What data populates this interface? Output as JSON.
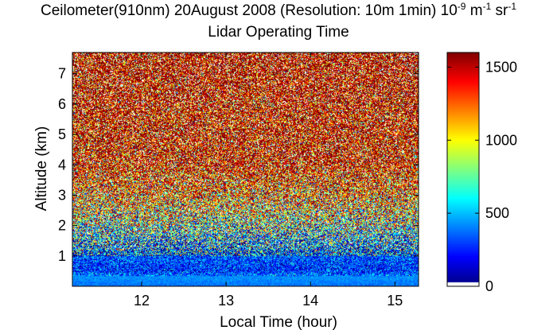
{
  "chart_data": [
    {
      "type": "heatmap",
      "title_main": "Ceilometer(910nm) 20August 2008 (Resolution: 10m 1min) 10",
      "title_exp1": "-9",
      "title_unit_m": " m",
      "title_exp2": "-1",
      "title_unit_sr": " sr",
      "title_exp3": "-1",
      "subtitle": "Lidar Operating Time",
      "xlabel": "Local Time (hour)",
      "ylabel": "Altitude (km)",
      "x_ticks": [
        "12",
        "13",
        "14",
        "15"
      ],
      "y_ticks": [
        "1",
        "2",
        "3",
        "4",
        "5",
        "6",
        "7"
      ],
      "x_tick_values": [
        12,
        13,
        14,
        15
      ],
      "y_tick_values": [
        1,
        2,
        3,
        4,
        5,
        6,
        7
      ],
      "xlim": [
        11.18,
        15.28
      ],
      "ylim": [
        0,
        7.7
      ],
      "colormap": "jet",
      "colorbar": {
        "ticks": [
          "0",
          "500",
          "1000",
          "1500"
        ],
        "tick_values": [
          0,
          500,
          1000,
          1500
        ],
        "range": [
          0,
          1600
        ]
      },
      "profile": [
        {
          "altitude_km": 0.0,
          "backscatter": 380
        },
        {
          "altitude_km": 0.3,
          "backscatter": 430
        },
        {
          "altitude_km": 0.5,
          "backscatter": 260
        },
        {
          "altitude_km": 1.0,
          "backscatter": 330
        },
        {
          "altitude_km": 1.5,
          "backscatter": 520
        },
        {
          "altitude_km": 2.0,
          "backscatter": 800
        },
        {
          "altitude_km": 3.0,
          "backscatter": 1200
        },
        {
          "altitude_km": 4.0,
          "backscatter": 1450
        },
        {
          "altitude_km": 7.7,
          "backscatter": 1600
        }
      ],
      "noise_level": 700,
      "grid": false,
      "colorbar_position": "right"
    }
  ]
}
